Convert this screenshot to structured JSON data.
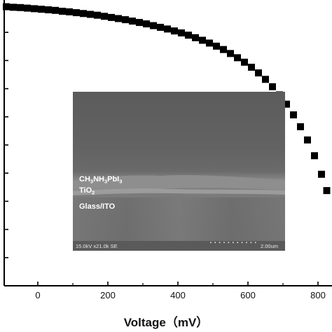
{
  "chart_data": {
    "type": "scatter",
    "xlabel": "Voltage（mV）",
    "ylabel": "",
    "xlim": [
      -95,
      830
    ],
    "ylim": [
      0,
      100
    ],
    "x_ticks": [
      0,
      200,
      400,
      600,
      800
    ],
    "x_tick_labels": [
      "0",
      "200",
      "400",
      "600",
      "800"
    ],
    "y_ticks": [
      10,
      20,
      30,
      40,
      50,
      60,
      70,
      80,
      90
    ],
    "y_tick_labels_visible": false,
    "grid": false,
    "legend": "none",
    "marker": "filled-square",
    "marker_color": "#000000",
    "series": [
      {
        "x": [
          -90,
          -70,
          -50,
          -30,
          -10,
          10,
          30,
          50,
          70,
          90,
          110,
          130,
          150,
          170,
          190,
          210,
          230,
          250,
          270,
          290,
          310,
          330,
          350,
          370,
          390,
          410,
          430,
          450,
          470,
          490,
          510,
          530,
          550,
          570,
          590,
          610,
          630,
          650,
          670,
          690,
          710,
          730,
          750,
          770,
          790,
          810,
          825
        ],
        "y": [
          99.1,
          98.9,
          98.8,
          98.6,
          98.4,
          98.2,
          98.0,
          97.8,
          97.5,
          97.3,
          97.0,
          96.7,
          96.4,
          96.1,
          95.7,
          95.3,
          94.9,
          94.5,
          94.0,
          93.5,
          93.0,
          92.4,
          91.8,
          91.2,
          90.5,
          89.8,
          89.0,
          88.1,
          87.2,
          86.2,
          85.1,
          83.9,
          82.5,
          81.0,
          79.4,
          77.6,
          75.6,
          73.3,
          70.7,
          67.8,
          64.5,
          60.7,
          56.5,
          51.8,
          46.2,
          39.6,
          33.8
        ]
      }
    ]
  },
  "inset": {
    "layers": [
      {
        "main": "CH",
        "sub1": "3",
        "mid": "NH",
        "sub2": "3",
        "mid2": "PbI",
        "sub3": "3"
      },
      {
        "main": "TiO",
        "sub1": "2"
      },
      {
        "main": "Glass/ITO"
      }
    ],
    "info": "15.0kV x21.0k SE",
    "scale_label": "2.00um"
  },
  "colors": {
    "axis": "#000000",
    "background": "#ffffff",
    "sem_background": "#6e6e6e",
    "sem_text": "#ffffff"
  }
}
